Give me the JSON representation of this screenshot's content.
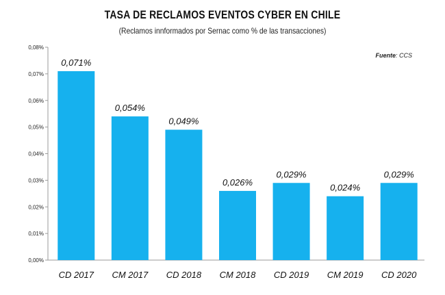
{
  "chart_data": {
    "type": "bar",
    "title": "TASA DE RECLAMOS EVENTOS CYBER EN CHILE",
    "subtitle": "(Reclamos innformados por Sernac como % de las transacciones)",
    "source_label": "Fuente",
    "source_value": ": CCS",
    "categories": [
      "CD  2017",
      "CM 2017",
      "CD 2018",
      "CM 2018",
      "CD 2019",
      "CM 2019",
      "CD 2020"
    ],
    "values": [
      0.071,
      0.054,
      0.049,
      0.026,
      0.029,
      0.024,
      0.029
    ],
    "data_labels": [
      "0,071%",
      "0,054%",
      "0,049%",
      "0,026%",
      "0,029%",
      "0,024%",
      "0,029%"
    ],
    "ylim": [
      0,
      0.08
    ],
    "yticks": [
      "0,00%",
      "0,01%",
      "0,02%",
      "0,03%",
      "0,04%",
      "0,05%",
      "0,06%",
      "0,07%",
      "0,08%"
    ],
    "grid": false,
    "bar_color": "#16b1ee"
  }
}
